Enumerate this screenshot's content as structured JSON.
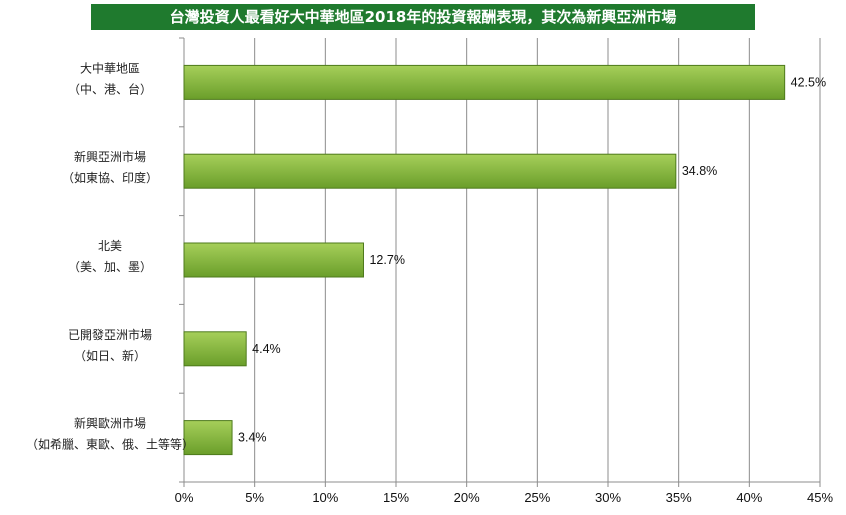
{
  "title": "台灣投資人最看好大中華地區2018年的投資報酬表現，其次為新興亞洲市場",
  "colors": {
    "title_background": "#1f7a2e",
    "title_text": "#ffffff",
    "bar_fill_light": "#a6cf5a",
    "bar_fill_dark": "#6a9e2a",
    "bar_stroke": "#4e7a1c",
    "grid": "#8c8c8c"
  },
  "chart_data": {
    "type": "bar",
    "orientation": "horizontal",
    "categories": [
      [
        "大中華地區",
        "（中、港、台）"
      ],
      [
        "新興亞洲市場",
        "（如東協、印度）"
      ],
      [
        "北美",
        "（美、加、墨）"
      ],
      [
        "已開發亞洲市場",
        "（如日、新）"
      ],
      [
        "新興歐洲市場",
        "（如希臘、東歐、俄、土等等）"
      ]
    ],
    "values": [
      42.5,
      34.8,
      12.7,
      4.4,
      3.4
    ],
    "value_labels": [
      "42.5%",
      "34.8%",
      "12.7%",
      "4.4%",
      "3.4%"
    ],
    "xlim": [
      0,
      45
    ],
    "xticks": [
      0,
      5,
      10,
      15,
      20,
      25,
      30,
      35,
      40,
      45
    ],
    "xtick_labels": [
      "0%",
      "5%",
      "10%",
      "15%",
      "20%",
      "25%",
      "30%",
      "35%",
      "40%",
      "45%"
    ],
    "grid": true,
    "legend": "none"
  }
}
